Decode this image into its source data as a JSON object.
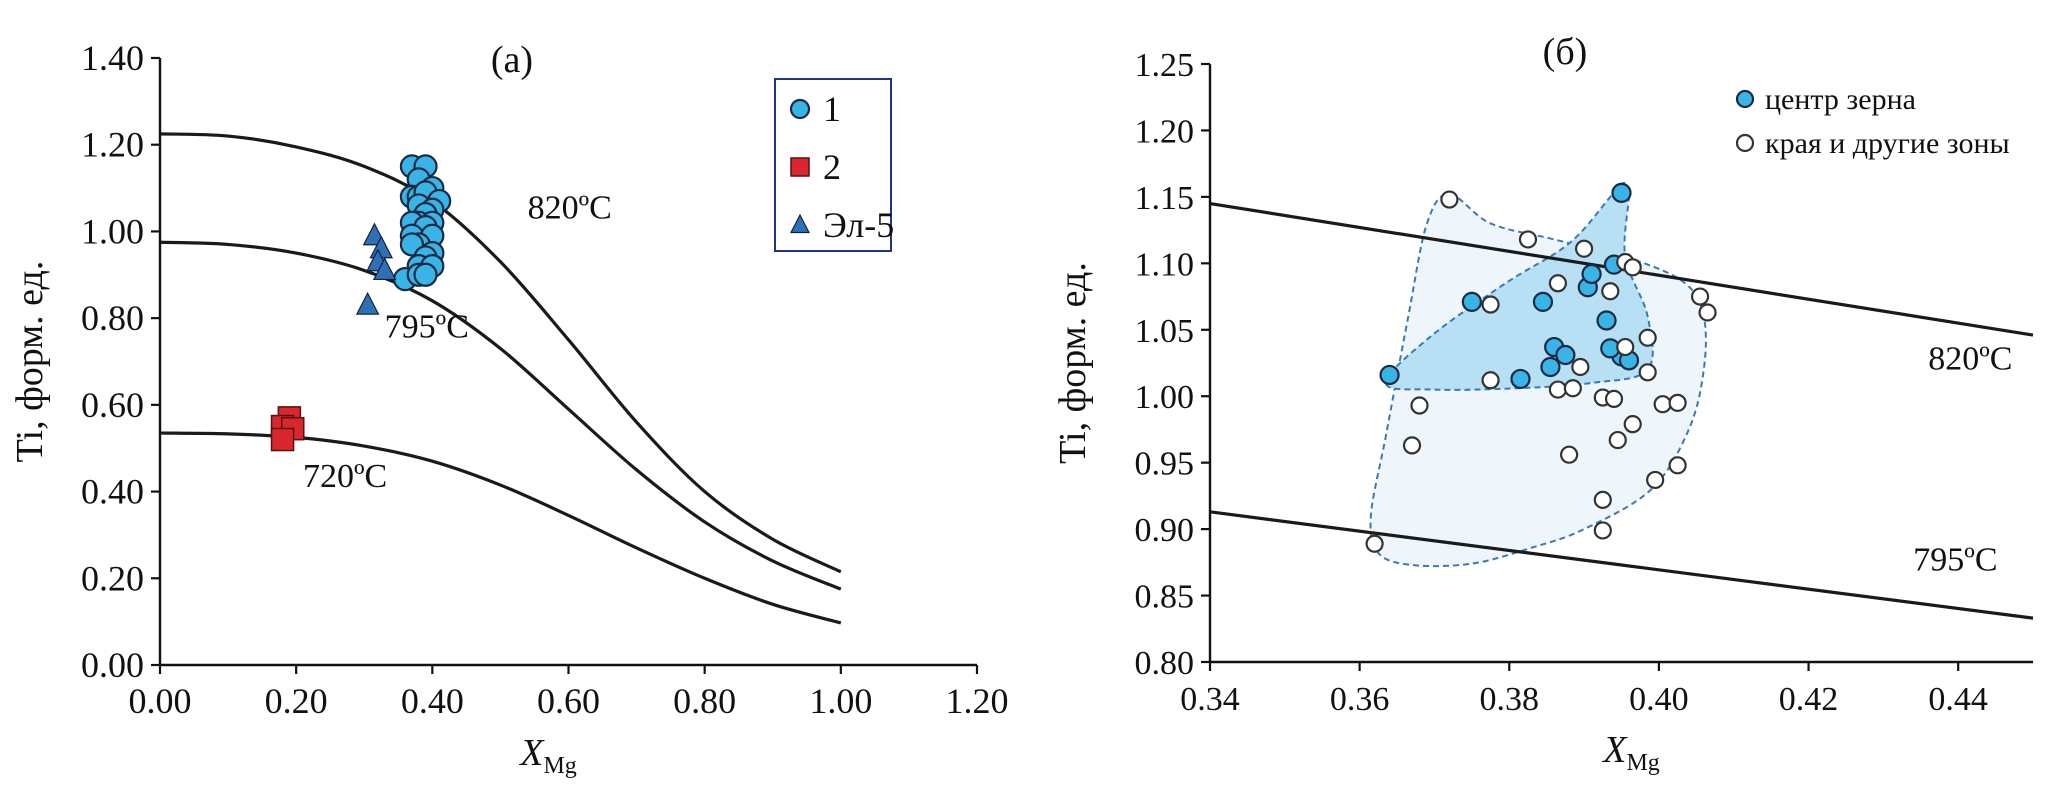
{
  "colors": {
    "axis": "#111111",
    "curve": "#1a1a1a",
    "blue_marker": "#38b4e6",
    "red_marker": "#d8282e",
    "triangle_marker": "#2f6fb6",
    "marker_stroke": "#1a2a44",
    "legend_box_border": "#1f3680",
    "hull_outer_fill": "#eef6fb",
    "hull_inner_fill": "#b8e0f5",
    "hull_stroke": "#3b78b8",
    "open_marker_fill": "#ffffff",
    "open_marker_stroke": "#333333"
  },
  "chart_data": [
    {
      "type": "scatter",
      "panel_label": "(а)",
      "xlabel": "X",
      "xlabel_sub": "Mg",
      "ylabel": "Ti, форм. ед.",
      "xlim": [
        0,
        1.2
      ],
      "ylim": [
        0,
        1.4
      ],
      "x_ticks": [
        0,
        0.2,
        0.4,
        0.6,
        0.8,
        1.0,
        1.2
      ],
      "x_tick_labels": [
        "0.00",
        "0.20",
        "0.40",
        "0.60",
        "0.80",
        "1.00",
        "1.20"
      ],
      "y_ticks": [
        0,
        0.2,
        0.4,
        0.6,
        0.8,
        1.0,
        1.2,
        1.4
      ],
      "y_tick_labels": [
        "0.00",
        "0.20",
        "0.40",
        "0.60",
        "0.80",
        "1.00",
        "1.20",
        "1.40"
      ],
      "grid": false,
      "legend_position": "top-right",
      "isotherms": [
        {
          "name": "820ºC",
          "label": "820ºC",
          "label_at": [
            0.54,
            1.03
          ],
          "x": [
            0,
            0.1,
            0.2,
            0.3,
            0.4,
            0.5,
            0.6,
            0.7,
            0.8,
            0.9,
            1.0
          ],
          "y": [
            1.225,
            1.22,
            1.195,
            1.15,
            1.07,
            0.93,
            0.75,
            0.56,
            0.4,
            0.29,
            0.215
          ]
        },
        {
          "name": "795ºC",
          "label": "795ºC",
          "label_at": [
            0.33,
            0.755
          ],
          "x": [
            0,
            0.1,
            0.2,
            0.3,
            0.4,
            0.5,
            0.6,
            0.7,
            0.8,
            0.9,
            1.0
          ],
          "y": [
            0.975,
            0.97,
            0.95,
            0.91,
            0.84,
            0.73,
            0.59,
            0.45,
            0.33,
            0.24,
            0.175
          ]
        },
        {
          "name": "720ºC",
          "label": "720ºC",
          "label_at": [
            0.21,
            0.41
          ],
          "x": [
            0,
            0.1,
            0.2,
            0.3,
            0.4,
            0.5,
            0.6,
            0.7,
            0.8,
            0.9,
            1.0
          ],
          "y": [
            0.535,
            0.533,
            0.525,
            0.505,
            0.47,
            0.415,
            0.345,
            0.27,
            0.2,
            0.14,
            0.097
          ]
        }
      ],
      "series": [
        {
          "name": "1",
          "marker": "circle",
          "points": [
            [
              0.37,
              1.15
            ],
            [
              0.39,
              1.15
            ],
            [
              0.38,
              1.12
            ],
            [
              0.4,
              1.1
            ],
            [
              0.37,
              1.08
            ],
            [
              0.38,
              1.08
            ],
            [
              0.39,
              1.09
            ],
            [
              0.41,
              1.07
            ],
            [
              0.38,
              1.06
            ],
            [
              0.4,
              1.05
            ],
            [
              0.39,
              1.04
            ],
            [
              0.38,
              1.02
            ],
            [
              0.37,
              1.02
            ],
            [
              0.4,
              1.02
            ],
            [
              0.39,
              1.01
            ],
            [
              0.37,
              0.99
            ],
            [
              0.4,
              0.99
            ],
            [
              0.38,
              0.97
            ],
            [
              0.37,
              0.97
            ],
            [
              0.4,
              0.95
            ],
            [
              0.39,
              0.94
            ],
            [
              0.38,
              0.92
            ],
            [
              0.4,
              0.92
            ],
            [
              0.36,
              0.89
            ],
            [
              0.38,
              0.9
            ],
            [
              0.39,
              0.9
            ]
          ]
        },
        {
          "name": "2",
          "marker": "square",
          "points": [
            [
              0.19,
              0.57
            ],
            [
              0.18,
              0.55
            ],
            [
              0.195,
              0.545
            ],
            [
              0.18,
              0.52
            ]
          ]
        },
        {
          "name": "Эл-5",
          "marker": "triangle",
          "points": [
            [
              0.315,
              0.99
            ],
            [
              0.325,
              0.96
            ],
            [
              0.32,
              0.93
            ],
            [
              0.33,
              0.91
            ],
            [
              0.305,
              0.83
            ]
          ]
        }
      ]
    },
    {
      "type": "scatter",
      "panel_label": "(б)",
      "xlabel": "X",
      "xlabel_sub": "Mg",
      "ylabel": "Ti, форм. ед.",
      "xlim": [
        0.34,
        0.45
      ],
      "ylim": [
        0.8,
        1.25
      ],
      "x_ticks": [
        0.34,
        0.36,
        0.38,
        0.4,
        0.42,
        0.44
      ],
      "x_tick_labels": [
        "0.34",
        "0.36",
        "0.38",
        "0.40",
        "0.42",
        "0.44"
      ],
      "y_ticks": [
        0.8,
        0.85,
        0.9,
        0.95,
        1.0,
        1.05,
        1.1,
        1.15,
        1.2,
        1.25
      ],
      "y_tick_labels": [
        "0.80",
        "0.85",
        "0.90",
        "0.95",
        "1.00",
        "1.05",
        "1.10",
        "1.15",
        "1.20",
        "1.25"
      ],
      "grid": false,
      "legend_position": "top-right",
      "isotherms": [
        {
          "name": "820ºC",
          "label": "820ºC",
          "label_at": [
            0.436,
            1.02
          ],
          "x": [
            0.34,
            0.45
          ],
          "y": [
            1.145,
            1.046
          ]
        },
        {
          "name": "795ºC",
          "label": "795ºC",
          "label_at": [
            0.434,
            0.869
          ],
          "x": [
            0.34,
            0.45
          ],
          "y": [
            0.913,
            0.833
          ]
        }
      ],
      "fields": [
        {
          "name": "outer",
          "points": [
            [
              0.372,
              1.152
            ],
            [
              0.3775,
              1.13
            ],
            [
              0.386,
              1.118
            ],
            [
              0.3965,
              1.103
            ],
            [
              0.4035,
              1.085
            ],
            [
              0.406,
              1.06
            ],
            [
              0.406,
              1.02
            ],
            [
              0.404,
              0.975
            ],
            [
              0.399,
              0.93
            ],
            [
              0.39,
              0.9
            ],
            [
              0.383,
              0.886
            ],
            [
              0.375,
              0.874
            ],
            [
              0.367,
              0.873
            ],
            [
              0.3625,
              0.882
            ],
            [
              0.3615,
              0.91
            ],
            [
              0.3635,
              0.97
            ],
            [
              0.3665,
              1.06
            ],
            [
              0.369,
              1.13
            ]
          ]
        },
        {
          "name": "inner",
          "points": [
            [
              0.3635,
              1.01
            ],
            [
              0.3695,
              1.045
            ],
            [
              0.3795,
              1.085
            ],
            [
              0.388,
              1.115
            ],
            [
              0.3935,
              1.15
            ],
            [
              0.395,
              1.16
            ],
            [
              0.396,
              1.153
            ],
            [
              0.3955,
              1.105
            ],
            [
              0.3985,
              1.06
            ],
            [
              0.3985,
              1.02
            ],
            [
              0.391,
              1.01
            ],
            [
              0.381,
              1.006
            ],
            [
              0.37,
              1.005
            ]
          ]
        }
      ],
      "series": [
        {
          "name": "центр зерна",
          "marker": "filled-circle",
          "points": [
            [
              0.395,
              1.153
            ],
            [
              0.364,
              1.016
            ],
            [
              0.375,
              1.071
            ],
            [
              0.3815,
              1.013
            ],
            [
              0.386,
              1.037
            ],
            [
              0.3855,
              1.022
            ],
            [
              0.3845,
              1.071
            ],
            [
              0.3875,
              1.031
            ],
            [
              0.3905,
              1.082
            ],
            [
              0.391,
              1.092
            ],
            [
              0.393,
              1.057
            ],
            [
              0.394,
              1.099
            ],
            [
              0.395,
              1.03
            ],
            [
              0.396,
              1.027
            ],
            [
              0.3935,
              1.036
            ]
          ]
        },
        {
          "name": "края и другие зоны",
          "marker": "open-circle",
          "points": [
            [
              0.372,
              1.148
            ],
            [
              0.3825,
              1.118
            ],
            [
              0.39,
              1.111
            ],
            [
              0.3955,
              1.101
            ],
            [
              0.3965,
              1.097
            ],
            [
              0.3935,
              1.079
            ],
            [
              0.3865,
              1.085
            ],
            [
              0.3775,
              1.069
            ],
            [
              0.368,
              0.993
            ],
            [
              0.3775,
              1.012
            ],
            [
              0.3865,
              1.005
            ],
            [
              0.3895,
              1.022
            ],
            [
              0.3885,
              1.006
            ],
            [
              0.3925,
              0.999
            ],
            [
              0.394,
              0.998
            ],
            [
              0.3955,
              1.037
            ],
            [
              0.3965,
              0.979
            ],
            [
              0.3945,
              0.967
            ],
            [
              0.3985,
              1.044
            ],
            [
              0.3985,
              1.018
            ],
            [
              0.4005,
              0.994
            ],
            [
              0.4025,
              0.995
            ],
            [
              0.4055,
              1.075
            ],
            [
              0.4065,
              1.063
            ],
            [
              0.3995,
              0.937
            ],
            [
              0.4025,
              0.948
            ],
            [
              0.388,
              0.956
            ],
            [
              0.3925,
              0.922
            ],
            [
              0.3925,
              0.899
            ],
            [
              0.367,
              0.963
            ],
            [
              0.362,
              0.889
            ]
          ]
        }
      ]
    }
  ]
}
